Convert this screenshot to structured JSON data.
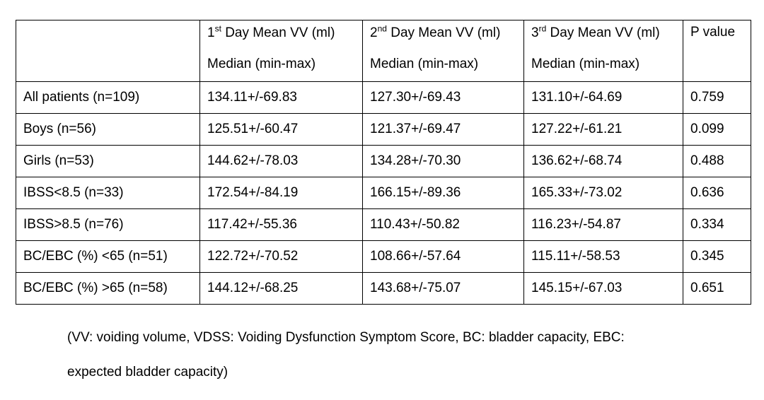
{
  "table": {
    "header": {
      "row_label_column": "",
      "day_columns": [
        {
          "ordinal": "1",
          "suffix": "st",
          "title": " Day Mean VV (ml)",
          "subtitle": "Median (min-max)"
        },
        {
          "ordinal": "2",
          "suffix": "nd",
          "title": " Day Mean VV (ml)",
          "subtitle": "Median (min-max)"
        },
        {
          "ordinal": "3",
          "suffix": "rd",
          "title": " Day Mean VV (ml)",
          "subtitle": "Median (min-max)"
        }
      ],
      "p_value": "P value"
    },
    "rows": [
      {
        "label": "All patients (n=109)",
        "day1": "134.11+/-69.83",
        "day2": "127.30+/-69.43",
        "day3": "131.10+/-64.69",
        "p": "0.759"
      },
      {
        "label": "Boys (n=56)",
        "day1": "125.51+/-60.47",
        "day2": "121.37+/-69.47",
        "day3": "127.22+/-61.21",
        "p": "0.099"
      },
      {
        "label": "Girls (n=53)",
        "day1": "144.62+/-78.03",
        "day2": "134.28+/-70.30",
        "day3": "136.62+/-68.74",
        "p": "0.488"
      },
      {
        "label": "IBSS<8.5 (n=33)",
        "day1": "172.54+/-84.19",
        "day2": "166.15+/-89.36",
        "day3": "165.33+/-73.02",
        "p": "0.636"
      },
      {
        "label": "IBSS>8.5 (n=76)",
        "day1": "117.42+/-55.36",
        "day2": "110.43+/-50.82",
        "day3": "116.23+/-54.87",
        "p": "0.334"
      },
      {
        "label": "BC/EBC (%) <65 (n=51)",
        "day1": "122.72+/-70.52",
        "day2": "108.66+/-57.64",
        "day3": "115.11+/-58.53",
        "p": "0.345"
      },
      {
        "label": "BC/EBC (%) >65 (n=58)",
        "day1": "144.12+/-68.25",
        "day2": "143.68+/-75.07",
        "day3": "145.15+/-67.03",
        "p": "0.651"
      }
    ]
  },
  "footnote": {
    "line1": "(VV: voiding volume, VDSS: Voiding Dysfunction Symptom Score, BC: bladder capacity, EBC:",
    "line2": "expected bladder capacity)"
  }
}
